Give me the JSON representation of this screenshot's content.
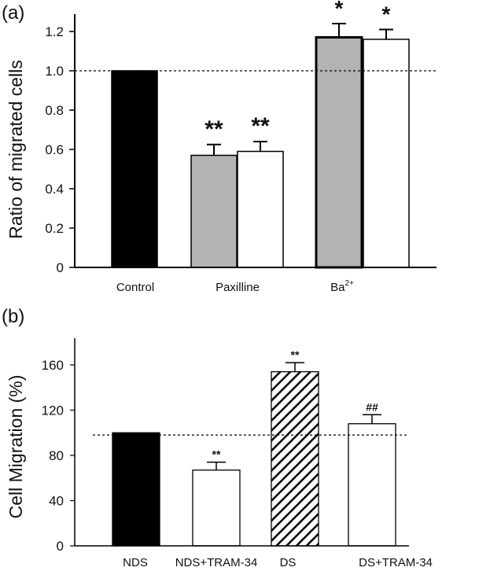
{
  "chart_data": [
    {
      "panel": "(a)",
      "type": "bar",
      "ylabel": "Ratio of migrated cells",
      "ylim": [
        0,
        1.3
      ],
      "yticks": [
        "0",
        "0.2",
        "0.4",
        "0.6",
        "0.8",
        "1.0",
        "1.2"
      ],
      "reference_line": 1.0,
      "groups": [
        {
          "label": "Control",
          "label_sup": ""
        },
        {
          "label": "Paxilline",
          "label_sup": ""
        },
        {
          "label": "Ba",
          "label_sup": "2+"
        }
      ],
      "bars": [
        {
          "group": 0,
          "value": 1.0,
          "error": 0.0,
          "fill": "#000000",
          "pattern": "solid",
          "sig": ""
        },
        {
          "group": 1,
          "value": 0.57,
          "error": 0.055,
          "fill": "#b3b3b3",
          "pattern": "solid",
          "sig": "**"
        },
        {
          "group": 1,
          "value": 0.59,
          "error": 0.05,
          "fill": "#ffffff",
          "pattern": "solid",
          "sig": "**"
        },
        {
          "group": 2,
          "value": 1.17,
          "error": 0.07,
          "fill": "#b3b3b3",
          "pattern": "solid",
          "sig": "*"
        },
        {
          "group": 2,
          "value": 1.16,
          "error": 0.05,
          "fill": "#ffffff",
          "pattern": "solid",
          "sig": "*"
        }
      ]
    },
    {
      "panel": "(b)",
      "type": "bar",
      "ylabel": "Cell Migration (%)",
      "ylim": [
        0,
        175
      ],
      "yticks": [
        "0",
        "40",
        "80",
        "120",
        "160"
      ],
      "reference_line": 98,
      "categories": [
        "NDS",
        "NDS+TRAM-34",
        "DS",
        "DS+TRAM-34"
      ],
      "bars": [
        {
          "value": 100,
          "error": 0,
          "fill": "#000000",
          "pattern": "solid",
          "sig": ""
        },
        {
          "value": 67,
          "error": 7,
          "fill": "#ffffff",
          "pattern": "solid",
          "sig": "**"
        },
        {
          "value": 154,
          "error": 8,
          "fill": "#ffffff",
          "pattern": "hatched",
          "sig": "**"
        },
        {
          "value": 108,
          "error": 8,
          "fill": "#ffffff",
          "pattern": "solid",
          "sig": "##"
        }
      ]
    }
  ]
}
